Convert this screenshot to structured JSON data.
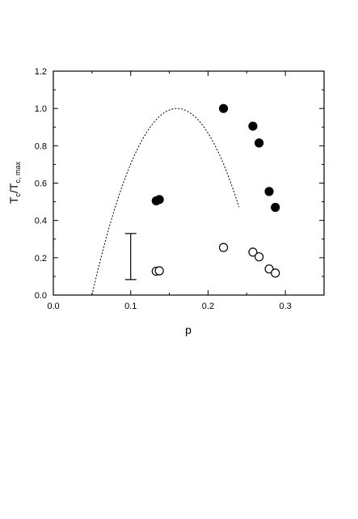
{
  "chart_data": {
    "type": "scatter",
    "title": "",
    "xlabel": "p",
    "ylabel_main": "T",
    "ylabel_sub": "c",
    "ylabel_main2": "/T",
    "ylabel_sub2": "c, max",
    "xlim": [
      0.0,
      0.35
    ],
    "ylim": [
      0.0,
      1.2
    ],
    "x_ticks": [
      {
        "value": 0.0,
        "label": "0.0"
      },
      {
        "value": 0.1,
        "label": "0.1"
      },
      {
        "value": 0.2,
        "label": "0.2"
      },
      {
        "value": 0.3,
        "label": "0.3"
      }
    ],
    "y_ticks": [
      {
        "value": 0.0,
        "label": "0.0"
      },
      {
        "value": 0.2,
        "label": "0.2"
      },
      {
        "value": 0.4,
        "label": "0.4"
      },
      {
        "value": 0.6,
        "label": "0.6"
      },
      {
        "value": 0.8,
        "label": "0.8"
      },
      {
        "value": 1.0,
        "label": "1.0"
      },
      {
        "value": 1.2,
        "label": "1.2"
      }
    ],
    "grid": false,
    "legend": "none",
    "series": [
      {
        "marker": "filled-circle",
        "color": "#000000",
        "points": [
          {
            "x": 0.133,
            "y": 0.505
          },
          {
            "x": 0.137,
            "y": 0.512
          },
          {
            "x": 0.22,
            "y": 1.0
          },
          {
            "x": 0.258,
            "y": 0.905
          },
          {
            "x": 0.266,
            "y": 0.815
          },
          {
            "x": 0.279,
            "y": 0.555
          },
          {
            "x": 0.287,
            "y": 0.47
          }
        ]
      },
      {
        "marker": "open-circle",
        "color": "#000000",
        "points": [
          {
            "x": 0.133,
            "y": 0.128
          },
          {
            "x": 0.137,
            "y": 0.13
          },
          {
            "x": 0.22,
            "y": 0.255
          },
          {
            "x": 0.258,
            "y": 0.23
          },
          {
            "x": 0.266,
            "y": 0.205
          },
          {
            "x": 0.279,
            "y": 0.14
          },
          {
            "x": 0.287,
            "y": 0.118
          }
        ]
      }
    ],
    "dotted_curve": {
      "style": "dotted",
      "x_range": [
        0.05,
        0.24
      ],
      "peak_x": 0.16,
      "peak_y": 1.0,
      "coefficient": 82.6
    },
    "error_bar": {
      "x": 0.1,
      "y_low": 0.083,
      "y_high": 0.33
    }
  }
}
